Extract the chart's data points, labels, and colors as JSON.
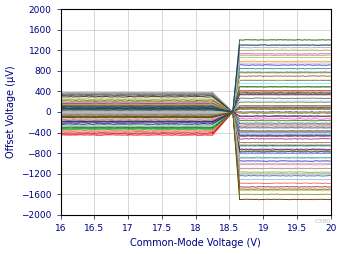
{
  "xlabel": "Common-Mode Voltage (V)",
  "ylabel": "Offset Voltage (μV)",
  "xlim": [
    16,
    20
  ],
  "ylim": [
    -2000,
    2000
  ],
  "xticks": [
    16,
    16.5,
    17,
    17.5,
    18,
    18.5,
    19,
    19.5,
    20
  ],
  "yticks": [
    -2000,
    -1600,
    -1200,
    -800,
    -400,
    0,
    400,
    800,
    1200,
    1600,
    2000
  ],
  "background_color": "#ffffff",
  "grid_color": "#c8c8c8",
  "transition_start": 18.25,
  "transition_end": 18.55,
  "flat_start": 18.65,
  "line_colors": [
    "#FF0000",
    "#CC0000",
    "#AA0000",
    "#FF3333",
    "#FF6666",
    "#00AA00",
    "#007700",
    "#004400",
    "#33BB33",
    "#66DD66",
    "#0000CC",
    "#0000AA",
    "#000077",
    "#3333FF",
    "#6666FF",
    "#FF8800",
    "#CC6600",
    "#AA4400",
    "#FFAA33",
    "#FFCC66",
    "#00AAAA",
    "#007777",
    "#004444",
    "#33CCCC",
    "#66EEEE",
    "#AA00AA",
    "#770077",
    "#440044",
    "#CC33CC",
    "#EE66EE",
    "#888800",
    "#666600",
    "#444400",
    "#AAAA33",
    "#CCCC66",
    "#000000",
    "#222222",
    "#444444",
    "#666666",
    "#888888",
    "#773300",
    "#AA4400",
    "#CC6633",
    "#FF8855",
    "#FFAA88",
    "#003377",
    "#005599",
    "#0077BB",
    "#3399DD",
    "#66BBEE",
    "#335500",
    "#557700",
    "#779900",
    "#99BB33",
    "#BBDD66",
    "#660022",
    "#880044",
    "#AA0066",
    "#CC3388",
    "#EE66AA",
    "#AAAAAA",
    "#BBBBBB",
    "#CCCCCC",
    "#555555",
    "#333333",
    "#AA6633",
    "#885522",
    "#663311",
    "#CCAA55",
    "#EEDD88",
    "#224477",
    "#446699",
    "#6688BB",
    "#88AADD",
    "#AACCFF",
    "#224433",
    "#446655",
    "#668877",
    "#88AA99",
    "#AACCBB",
    "#8B3513",
    "#A05020",
    "#C07030",
    "#D09050",
    "#E0B080",
    "#553388",
    "#7755AA",
    "#9977CC",
    "#BB99EE",
    "#331166",
    "#006633",
    "#009944",
    "#00BB55",
    "#33DD77",
    "#66EE99",
    "#990000",
    "#BB1111",
    "#DD3333",
    "#330000",
    "#660000"
  ]
}
